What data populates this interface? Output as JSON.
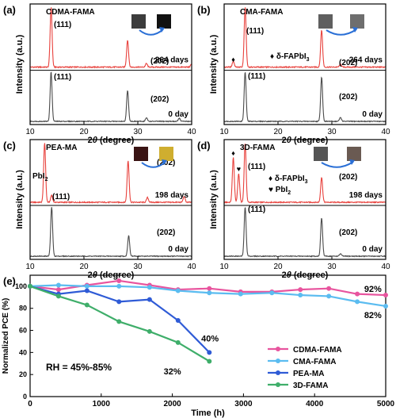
{
  "chart_data": [
    {
      "type": "line",
      "panel_letter": "(a)",
      "title": "CDMA-FAMA",
      "xlabel_prefix": "2",
      "xlabel_theta": "θ",
      "xlabel_suffix": " (degree)",
      "ylabel": "Intensity (a.u.)",
      "xlim": [
        10,
        40
      ],
      "x_ticks": [
        "10",
        "20",
        "30",
        "40"
      ],
      "grid": false,
      "series": [
        {
          "name": "264 days",
          "color": "#e8413c",
          "peaks": [
            {
              "x": 13.9,
              "h": 1.0
            },
            {
              "x": 28.1,
              "h": 0.45
            },
            {
              "x": 31.6,
              "h": 0.06
            },
            {
              "x": 40.0,
              "h": 0.05
            }
          ]
        },
        {
          "name": "0 day",
          "color": "#4a4a4a",
          "peaks": [
            {
              "x": 13.9,
              "h": 1.0
            },
            {
              "x": 28.1,
              "h": 0.62
            },
            {
              "x": 31.6,
              "h": 0.07
            },
            {
              "x": 37.7,
              "h": 0.06
            }
          ]
        }
      ],
      "peak_labels": [
        "(111)",
        "(202)",
        "(111)",
        "(202)"
      ],
      "legend_items": []
    },
    {
      "type": "line",
      "panel_letter": "(b)",
      "title": "CMA-FAMA",
      "xlabel_prefix": "2",
      "xlabel_theta": "θ",
      "xlabel_suffix": " (degree)",
      "ylabel": "Intensity (a.u.)",
      "xlim": [
        10,
        40
      ],
      "x_ticks": [
        "10",
        "20",
        "30",
        "40"
      ],
      "grid": false,
      "series": [
        {
          "name": "264 days",
          "color": "#e8413c",
          "peaks": [
            {
              "x": 11.7,
              "h": 0.1
            },
            {
              "x": 13.9,
              "h": 1.0
            },
            {
              "x": 28.1,
              "h": 0.62
            },
            {
              "x": 31.6,
              "h": 0.05
            }
          ]
        },
        {
          "name": "0 day",
          "color": "#4a4a4a",
          "peaks": [
            {
              "x": 13.9,
              "h": 1.0
            },
            {
              "x": 28.1,
              "h": 0.9
            },
            {
              "x": 31.6,
              "h": 0.08
            }
          ]
        }
      ],
      "peak_labels": [
        "(111)",
        "(202)",
        "(111)",
        "(202)"
      ],
      "legend_items": [
        {
          "symbol": "♦",
          "text": "δ-FAPbI",
          "sub": "3"
        }
      ]
    },
    {
      "type": "line",
      "panel_letter": "(c)",
      "title": "PEA-MA",
      "xlabel_prefix": "2",
      "xlabel_theta": "θ",
      "xlabel_suffix": " (degree)",
      "ylabel": "Intensity (a.u.)",
      "xlim": [
        10,
        40
      ],
      "x_ticks": [
        "10",
        "20",
        "30",
        "40"
      ],
      "grid": false,
      "series": [
        {
          "name": "198 days",
          "color": "#e8413c",
          "peaks": [
            {
              "x": 12.7,
              "h": 1.0
            },
            {
              "x": 14.0,
              "h": 0.12
            },
            {
              "x": 28.2,
              "h": 0.7
            },
            {
              "x": 31.8,
              "h": 0.08
            },
            {
              "x": 38.6,
              "h": 0.1
            }
          ]
        },
        {
          "name": "0 day",
          "color": "#4a4a4a",
          "peaks": [
            {
              "x": 14.0,
              "h": 1.0
            },
            {
              "x": 28.3,
              "h": 0.42
            }
          ]
        }
      ],
      "peak_labels": [
        "PbI",
        "(202)",
        "(111)",
        "(202)"
      ],
      "legend_items": []
    },
    {
      "type": "line",
      "panel_letter": "(d)",
      "title": "3D-FAMA",
      "xlabel_prefix": "2",
      "xlabel_theta": "θ",
      "xlabel_suffix": " (degree)",
      "ylabel": "Intensity (a.u.)",
      "xlim": [
        10,
        40
      ],
      "x_ticks": [
        "10",
        "20",
        "30",
        "40"
      ],
      "grid": false,
      "series": [
        {
          "name": "198 days",
          "color": "#e8413c",
          "peaks": [
            {
              "x": 11.7,
              "h": 0.75
            },
            {
              "x": 12.7,
              "h": 0.48
            },
            {
              "x": 13.9,
              "h": 1.0
            },
            {
              "x": 28.1,
              "h": 0.42
            }
          ]
        },
        {
          "name": "0 day",
          "color": "#4a4a4a",
          "peaks": [
            {
              "x": 13.9,
              "h": 1.0
            },
            {
              "x": 28.1,
              "h": 0.78
            },
            {
              "x": 31.6,
              "h": 0.05
            }
          ]
        }
      ],
      "peak_labels": [
        "(111)",
        "(202)",
        "(111)",
        "(202)"
      ],
      "legend_items": [
        {
          "symbol": "♦",
          "text": "δ-FAPbI",
          "sub": "3"
        },
        {
          "symbol": "♥",
          "text": "PbI",
          "sub": "2"
        }
      ]
    },
    {
      "type": "line",
      "panel_letter": "(e)",
      "title": "",
      "xlabel": "Time (h)",
      "ylabel": "Normalized PCE (%)",
      "xlim": [
        0,
        5000
      ],
      "ylim": [
        0,
        110
      ],
      "x_ticks": [
        0,
        1000,
        2000,
        3000,
        4000,
        5000
      ],
      "y_ticks": [
        0,
        20,
        40,
        60,
        80,
        100
      ],
      "grid": false,
      "legend_position": "bottom-right",
      "annotation": "RH = 45%-85%",
      "series": [
        {
          "name": "CDMA-FAMA",
          "color": "#e8549e",
          "end_label": "92%",
          "x": [
            0,
            400,
            800,
            1250,
            1680,
            2080,
            2520,
            2960,
            3400,
            3800,
            4200,
            4600,
            5000
          ],
          "y": [
            100,
            97,
            101,
            105,
            101,
            97,
            98,
            95,
            95,
            97,
            98,
            93,
            92
          ]
        },
        {
          "name": "CMA-FAMA",
          "color": "#5bbcf0",
          "end_label": "82%",
          "x": [
            0,
            400,
            800,
            1250,
            1680,
            2080,
            2520,
            2960,
            3400,
            3800,
            4200,
            4600,
            5000
          ],
          "y": [
            100,
            101,
            100,
            100,
            99,
            96,
            94,
            93,
            94,
            92,
            91,
            86,
            82
          ]
        },
        {
          "name": "PEA-MA",
          "color": "#2f5bd6",
          "end_label": "40%",
          "x": [
            0,
            400,
            800,
            1250,
            1680,
            2080,
            2520
          ],
          "y": [
            100,
            93,
            96,
            86,
            88,
            69,
            40
          ]
        },
        {
          "name": "3D-FAMA",
          "color": "#3fae6a",
          "end_label": "32%",
          "x": [
            0,
            400,
            800,
            1250,
            1680,
            2080,
            2520
          ],
          "y": [
            100,
            91,
            83,
            68,
            59,
            49,
            32
          ]
        }
      ]
    }
  ]
}
